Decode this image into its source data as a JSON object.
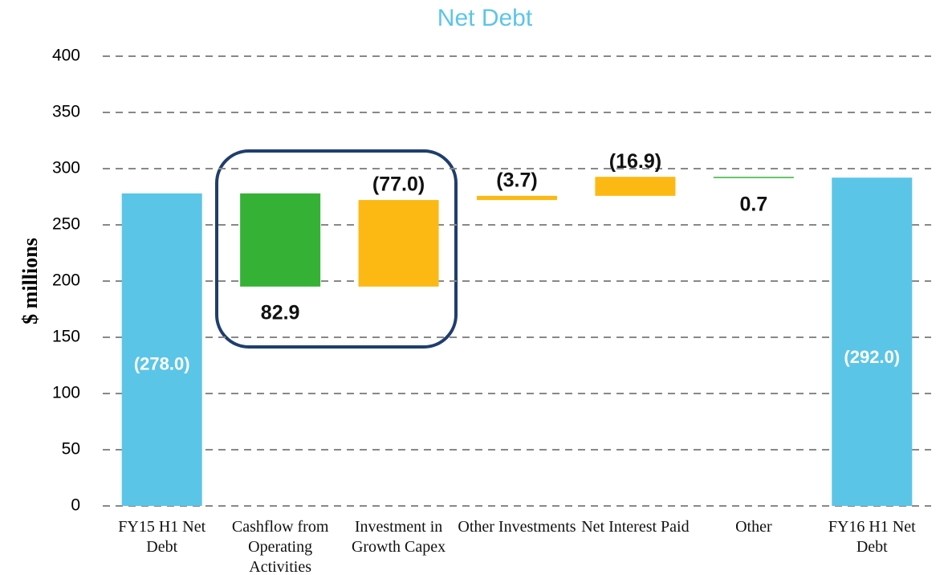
{
  "chart_data": {
    "type": "waterfall",
    "title": "Net Debt",
    "y_label": "$ millions",
    "categories": [
      "FY15 H1 Net Debt",
      "Cashflow from Operating Activities",
      "Investment in Growth Capex",
      "Other Investments",
      "Net Interest Paid",
      "Other",
      "FY16 H1 Net Debt"
    ],
    "values": [
      278,
      -82.9,
      77,
      3.7,
      16.9,
      -0.7,
      292
    ],
    "value_labels": [
      "(278.0)",
      "82.9",
      "(77.0)",
      "(3.7)",
      "(16.9)",
      "0.7",
      "(292.0)"
    ],
    "measure": [
      "absolute",
      "relative",
      "relative",
      "relative",
      "relative",
      "relative",
      "total"
    ],
    "colors": [
      "#5bc5e8",
      "#35b235",
      "#fdb913",
      "#fdb913",
      "#fdb913",
      "#35b235",
      "#5bc5e8"
    ],
    "ylim": [
      0,
      400
    ],
    "yticks": [
      0,
      50,
      100,
      150,
      200,
      250,
      300,
      350,
      400
    ],
    "grid": true
  }
}
